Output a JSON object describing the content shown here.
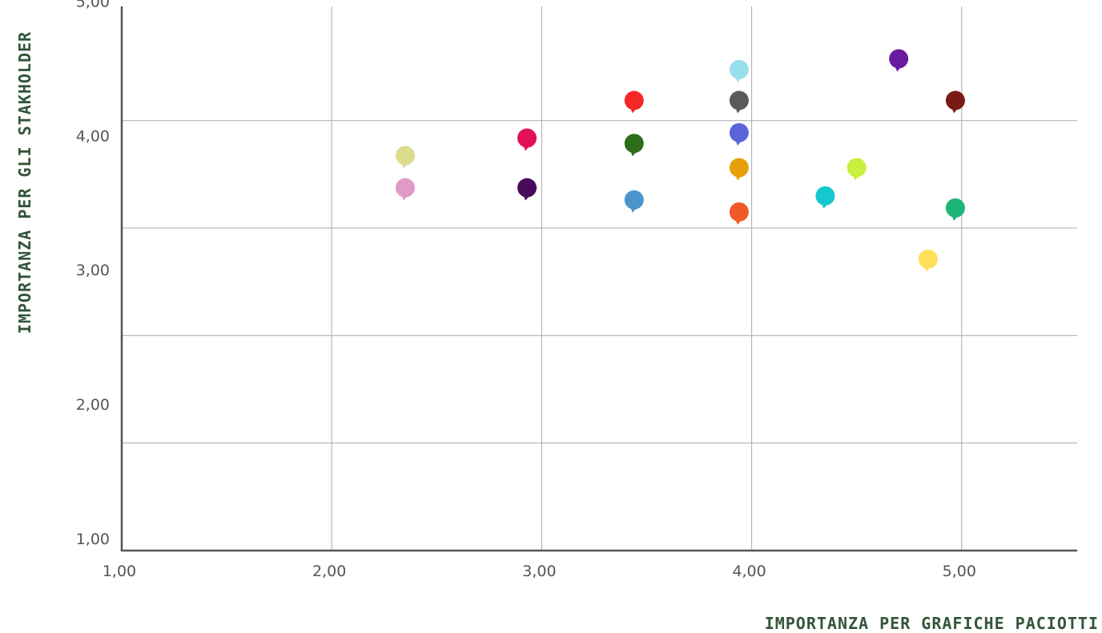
{
  "chart_data": {
    "type": "scatter",
    "title": "",
    "xlabel": "IMPORTANZA PER GRAFICHE PACIOTTI",
    "ylabel": "IMPORTANZA PER GLI STAKHOLDER",
    "xlim": [
      1,
      5.55
    ],
    "ylim": [
      1,
      5.05
    ],
    "grid": true,
    "x_ticks": [
      {
        "value": 1,
        "label": "1,00"
      },
      {
        "value": 2,
        "label": "2,00"
      },
      {
        "value": 3,
        "label": "3,00"
      },
      {
        "value": 4,
        "label": "4,00"
      },
      {
        "value": 5,
        "label": "5,00"
      }
    ],
    "y_ticks": [
      {
        "value": 1.0,
        "label": "1,00"
      },
      {
        "value": 2.0,
        "label": "2,00"
      },
      {
        "value": 3.0,
        "label": "3,00"
      },
      {
        "value": 4.0,
        "label": "4,00"
      },
      {
        "value": 5.0,
        "label": "5,00"
      }
    ],
    "y_gridlines": [
      1.8,
      2.6,
      3.4,
      4.2
    ],
    "x_gridlines": [
      2,
      3,
      4,
      5
    ],
    "points": [
      {
        "x": 2.35,
        "y": 3.94,
        "color": "#dcdc8c"
      },
      {
        "x": 2.35,
        "y": 3.7,
        "color": "#e09ac8"
      },
      {
        "x": 2.93,
        "y": 4.07,
        "color": "#e0105a"
      },
      {
        "x": 2.93,
        "y": 3.7,
        "color": "#4a0a5a"
      },
      {
        "x": 3.44,
        "y": 4.35,
        "color": "#f52828"
      },
      {
        "x": 3.44,
        "y": 4.03,
        "color": "#2e6e1a"
      },
      {
        "x": 3.44,
        "y": 3.61,
        "color": "#4a96cc"
      },
      {
        "x": 3.94,
        "y": 4.58,
        "color": "#96e0ec"
      },
      {
        "x": 3.94,
        "y": 4.35,
        "color": "#5a5a5a"
      },
      {
        "x": 3.94,
        "y": 4.11,
        "color": "#5a64d8"
      },
      {
        "x": 3.94,
        "y": 3.85,
        "color": "#e8a00a"
      },
      {
        "x": 3.94,
        "y": 3.52,
        "color": "#f05a28"
      },
      {
        "x": 4.35,
        "y": 3.64,
        "color": "#14c8d0"
      },
      {
        "x": 4.5,
        "y": 3.85,
        "color": "#c8f03c"
      },
      {
        "x": 4.7,
        "y": 4.66,
        "color": "#6a1aa0"
      },
      {
        "x": 4.84,
        "y": 3.17,
        "color": "#ffe05a"
      },
      {
        "x": 4.97,
        "y": 4.35,
        "color": "#7a1a14"
      },
      {
        "x": 4.97,
        "y": 3.55,
        "color": "#1eb478"
      }
    ]
  }
}
